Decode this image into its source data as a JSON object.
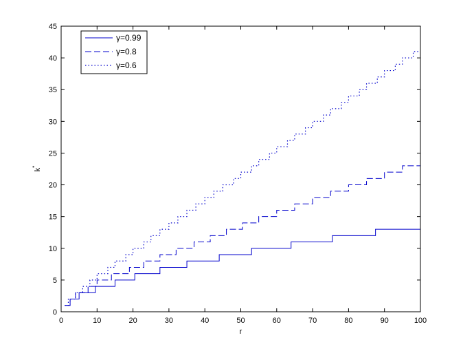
{
  "chart_data": {
    "type": "line",
    "xlabel": "r",
    "ylabel": "k",
    "ylabel_superscript": "*",
    "xlim": [
      0,
      100
    ],
    "ylim": [
      0,
      45
    ],
    "x_ticks": [
      0,
      10,
      20,
      30,
      40,
      50,
      60,
      70,
      80,
      90,
      100
    ],
    "y_ticks": [
      0,
      5,
      10,
      15,
      20,
      25,
      30,
      35,
      40,
      45
    ],
    "grid": false,
    "legend_position": "top-left",
    "line_color": "#0000cc",
    "series": [
      {
        "name": "γ=0.99",
        "style": "solid",
        "steps": [
          [
            1,
            1
          ],
          [
            2.5,
            2
          ],
          [
            5,
            3
          ],
          [
            9.5,
            4
          ],
          [
            15,
            5
          ],
          [
            20.5,
            6
          ],
          [
            27.5,
            7
          ],
          [
            35,
            8
          ],
          [
            44,
            9
          ],
          [
            53,
            10
          ],
          [
            64,
            11
          ],
          [
            75.5,
            12
          ],
          [
            87.5,
            13
          ],
          [
            100,
            13
          ]
        ]
      },
      {
        "name": "γ=0.8",
        "style": "dashed",
        "steps": [
          [
            1,
            1
          ],
          [
            2.5,
            2
          ],
          [
            4,
            3
          ],
          [
            7.5,
            4
          ],
          [
            10,
            5
          ],
          [
            14,
            6
          ],
          [
            19,
            7
          ],
          [
            23,
            8
          ],
          [
            27.5,
            9
          ],
          [
            32,
            10
          ],
          [
            37,
            11
          ],
          [
            41.5,
            12
          ],
          [
            46,
            13
          ],
          [
            50.5,
            14
          ],
          [
            55,
            15
          ],
          [
            60,
            16
          ],
          [
            65,
            17
          ],
          [
            70,
            18
          ],
          [
            75,
            19
          ],
          [
            80,
            20
          ],
          [
            85,
            21
          ],
          [
            90,
            22
          ],
          [
            95,
            23
          ],
          [
            100,
            23
          ]
        ]
      },
      {
        "name": "γ=0.6",
        "style": "dotted",
        "steps": [
          [
            1,
            1
          ],
          [
            2,
            2
          ],
          [
            4,
            3
          ],
          [
            6,
            4
          ],
          [
            8,
            5
          ],
          [
            10,
            6
          ],
          [
            13,
            7
          ],
          [
            15,
            8
          ],
          [
            18,
            9
          ],
          [
            20,
            10
          ],
          [
            23,
            11
          ],
          [
            25,
            12
          ],
          [
            27.5,
            13
          ],
          [
            30,
            14
          ],
          [
            32.5,
            15
          ],
          [
            35,
            16
          ],
          [
            37.5,
            17
          ],
          [
            40,
            18
          ],
          [
            42.5,
            19
          ],
          [
            45,
            20
          ],
          [
            48,
            21
          ],
          [
            50,
            22
          ],
          [
            53,
            23
          ],
          [
            55,
            24
          ],
          [
            58,
            25
          ],
          [
            60,
            26
          ],
          [
            63,
            27
          ],
          [
            65,
            28
          ],
          [
            68,
            29
          ],
          [
            70,
            30
          ],
          [
            73,
            31
          ],
          [
            75,
            32
          ],
          [
            78,
            33
          ],
          [
            80,
            34
          ],
          [
            83,
            35
          ],
          [
            85,
            36
          ],
          [
            88,
            37
          ],
          [
            90,
            38
          ],
          [
            93,
            39
          ],
          [
            95,
            40
          ],
          [
            98,
            41
          ],
          [
            100,
            41
          ]
        ]
      }
    ]
  }
}
